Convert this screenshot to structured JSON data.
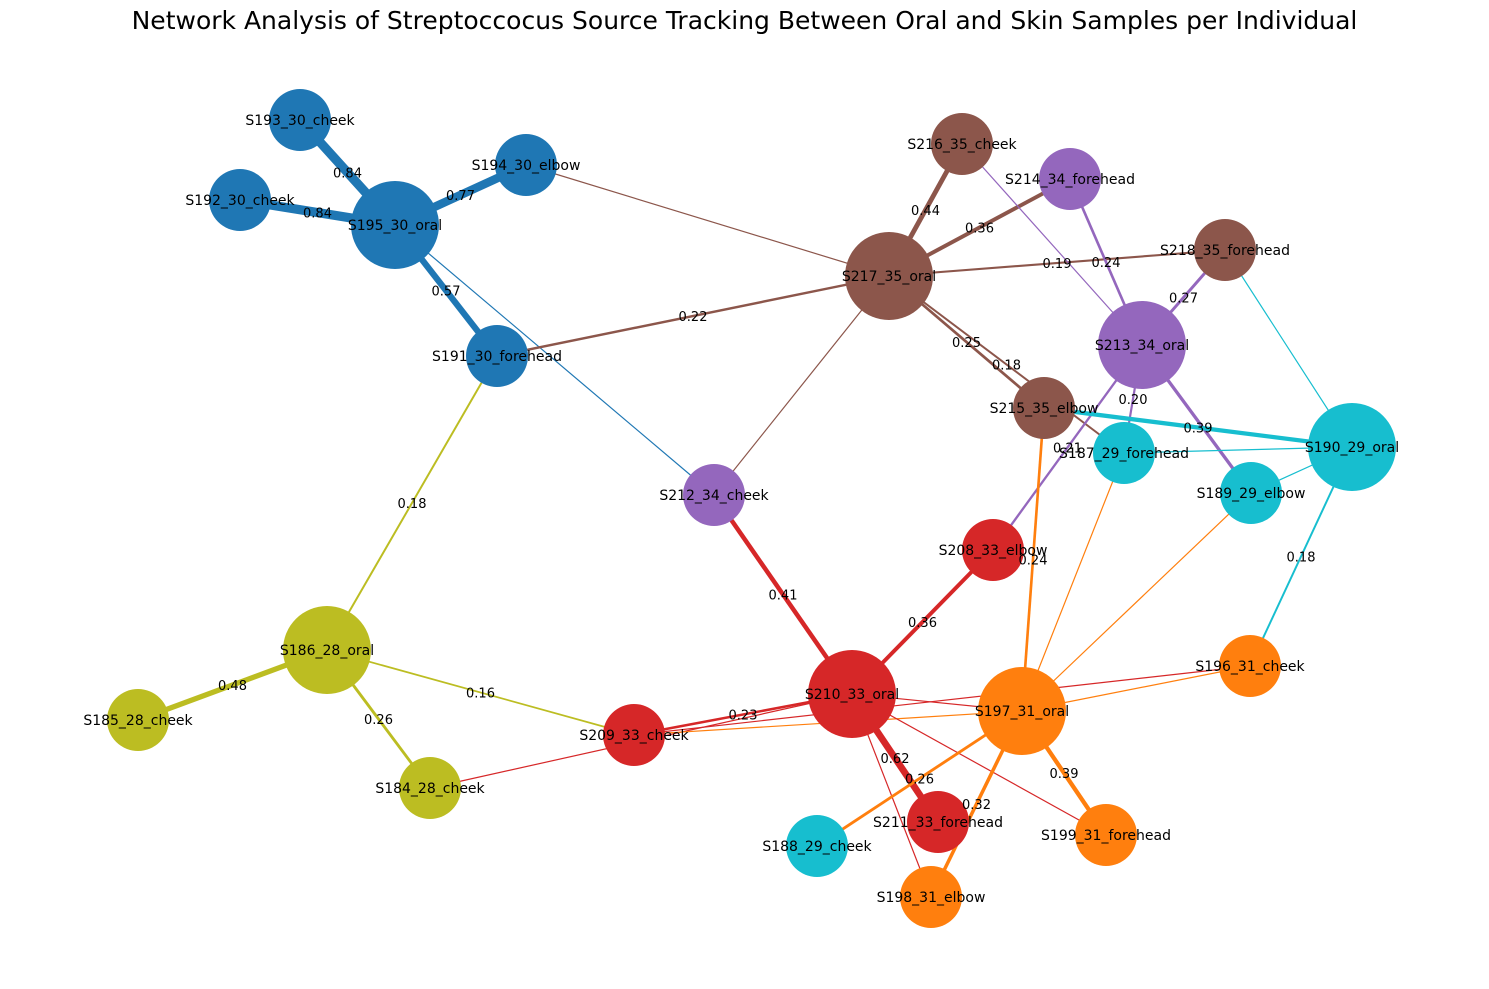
{
  "title": "Network Analysis of Streptoccocus Source Tracking Between Oral and Skin Samples per Individual",
  "colors": {
    "28": "#bcbd22",
    "29": "#17becf",
    "30": "#1f77b4",
    "31": "#ff7f0e",
    "33": "#d62728",
    "34": "#9467bd",
    "35": "#8c564b"
  },
  "nodes": [
    {
      "id": "S193_30_cheek",
      "group": "30",
      "type": "skin"
    },
    {
      "id": "S192_30_cheek",
      "group": "30",
      "type": "skin"
    },
    {
      "id": "S194_30_elbow",
      "group": "30",
      "type": "skin"
    },
    {
      "id": "S195_30_oral",
      "group": "30",
      "type": "oral"
    },
    {
      "id": "S191_30_forehead",
      "group": "30",
      "type": "skin"
    },
    {
      "id": "S216_35_cheek",
      "group": "35",
      "type": "skin"
    },
    {
      "id": "S214_34_forehead",
      "group": "34",
      "type": "skin"
    },
    {
      "id": "S217_35_oral",
      "group": "35",
      "type": "oral"
    },
    {
      "id": "S218_35_forehead",
      "group": "35",
      "type": "skin"
    },
    {
      "id": "S213_34_oral",
      "group": "34",
      "type": "oral"
    },
    {
      "id": "S215_35_elbow",
      "group": "35",
      "type": "skin"
    },
    {
      "id": "S187_29_forehead",
      "group": "29",
      "type": "skin"
    },
    {
      "id": "S190_29_oral",
      "group": "29",
      "type": "oral"
    },
    {
      "id": "S189_29_elbow",
      "group": "29",
      "type": "skin"
    },
    {
      "id": "S212_34_cheek",
      "group": "34",
      "type": "skin"
    },
    {
      "id": "S208_33_elbow",
      "group": "33",
      "type": "skin"
    },
    {
      "id": "S186_28_oral",
      "group": "28",
      "type": "oral"
    },
    {
      "id": "S185_28_cheek",
      "group": "28",
      "type": "skin"
    },
    {
      "id": "S184_28_cheek",
      "group": "28",
      "type": "skin"
    },
    {
      "id": "S209_33_cheek",
      "group": "33",
      "type": "skin"
    },
    {
      "id": "S210_33_oral",
      "group": "33",
      "type": "oral"
    },
    {
      "id": "S197_31_oral",
      "group": "31",
      "type": "oral"
    },
    {
      "id": "S196_31_cheek",
      "group": "31",
      "type": "skin"
    },
    {
      "id": "S211_33_forehead",
      "group": "33",
      "type": "skin"
    },
    {
      "id": "S199_31_forehead",
      "group": "31",
      "type": "skin"
    },
    {
      "id": "S188_29_cheek",
      "group": "29",
      "type": "skin"
    },
    {
      "id": "S198_31_elbow",
      "group": "31",
      "type": "skin"
    }
  ],
  "edges": [
    {
      "source": "S195_30_oral",
      "target": "S193_30_cheek",
      "weight": 0.84,
      "label": "0.84"
    },
    {
      "source": "S195_30_oral",
      "target": "S192_30_cheek",
      "weight": 0.84,
      "label": "0.84"
    },
    {
      "source": "S195_30_oral",
      "target": "S194_30_elbow",
      "weight": 0.77,
      "label": "0.77"
    },
    {
      "source": "S195_30_oral",
      "target": "S191_30_forehead",
      "weight": 0.57,
      "label": "0.57"
    },
    {
      "source": "S195_30_oral",
      "target": "S212_34_cheek",
      "weight": 0.06,
      "label": ""
    },
    {
      "source": "S194_30_elbow",
      "target": "S217_35_oral",
      "weight": 0.08,
      "label": ""
    },
    {
      "source": "S191_30_forehead",
      "target": "S217_35_oral",
      "weight": 0.22,
      "label": "0.22"
    },
    {
      "source": "S191_30_forehead",
      "target": "S186_28_oral",
      "weight": 0.18,
      "label": "0.18"
    },
    {
      "source": "S217_35_oral",
      "target": "S216_35_cheek",
      "weight": 0.44,
      "label": "0.44"
    },
    {
      "source": "S217_35_oral",
      "target": "S214_34_forehead",
      "weight": 0.36,
      "label": "0.36"
    },
    {
      "source": "S217_35_oral",
      "target": "S218_35_forehead",
      "weight": 0.19,
      "label": "0.19"
    },
    {
      "source": "S217_35_oral",
      "target": "S215_35_elbow",
      "weight": 0.25,
      "label": "0.25"
    },
    {
      "source": "S217_35_oral",
      "target": "S187_29_forehead",
      "weight": 0.18,
      "label": "0.18"
    },
    {
      "source": "S217_35_oral",
      "target": "S212_34_cheek",
      "weight": 0.06,
      "label": ""
    },
    {
      "source": "S216_35_cheek",
      "target": "S213_34_oral",
      "weight": 0.06,
      "label": ""
    },
    {
      "source": "S214_34_forehead",
      "target": "S213_34_oral",
      "weight": 0.24,
      "label": "0.24"
    },
    {
      "source": "S218_35_forehead",
      "target": "S213_34_oral",
      "weight": 0.27,
      "label": "0.27"
    },
    {
      "source": "S218_35_forehead",
      "target": "S190_29_oral",
      "weight": 0.08,
      "label": ""
    },
    {
      "source": "S213_34_oral",
      "target": "S189_29_elbow",
      "weight": 0.3,
      "label": ""
    },
    {
      "source": "S213_34_oral",
      "target": "S187_29_forehead",
      "weight": 0.2,
      "label": "0.20"
    },
    {
      "source": "S213_34_oral",
      "target": "S208_33_elbow",
      "weight": 0.21,
      "label": "0.21"
    },
    {
      "source": "S215_35_elbow",
      "target": "S190_29_oral",
      "weight": 0.39,
      "label": "0.39"
    },
    {
      "source": "S215_35_elbow",
      "target": "S197_31_oral",
      "weight": 0.24,
      "label": "0.24"
    },
    {
      "source": "S187_29_forehead",
      "target": "S190_29_oral",
      "weight": 0.08,
      "label": ""
    },
    {
      "source": "S187_29_forehead",
      "target": "S197_31_oral",
      "weight": 0.08,
      "label": ""
    },
    {
      "source": "S190_29_oral",
      "target": "S189_29_elbow",
      "weight": 0.06,
      "label": ""
    },
    {
      "source": "S190_29_oral",
      "target": "S196_31_cheek",
      "weight": 0.18,
      "label": "0.18"
    },
    {
      "source": "S189_29_elbow",
      "target": "S197_31_oral",
      "weight": 0.06,
      "label": ""
    },
    {
      "source": "S212_34_cheek",
      "target": "S210_33_oral",
      "weight": 0.41,
      "label": "0.41"
    },
    {
      "source": "S208_33_elbow",
      "target": "S210_33_oral",
      "weight": 0.36,
      "label": "0.36"
    },
    {
      "source": "S186_28_oral",
      "target": "S185_28_cheek",
      "weight": 0.48,
      "label": "0.48"
    },
    {
      "source": "S186_28_oral",
      "target": "S184_28_cheek",
      "weight": 0.26,
      "label": "0.26"
    },
    {
      "source": "S186_28_oral",
      "target": "S209_33_cheek",
      "weight": 0.16,
      "label": "0.16"
    },
    {
      "source": "S184_28_cheek",
      "target": "S210_33_oral",
      "weight": 0.06,
      "label": ""
    },
    {
      "source": "S209_33_cheek",
      "target": "S210_33_oral",
      "weight": 0.23,
      "label": "0.23"
    },
    {
      "source": "S209_33_cheek",
      "target": "S197_31_oral",
      "weight": 0.06,
      "label": ""
    },
    {
      "source": "S210_33_oral",
      "target": "S197_31_oral",
      "weight": 0.06,
      "label": ""
    },
    {
      "source": "S210_33_oral",
      "target": "S211_33_forehead",
      "weight": 0.62,
      "label": "0.62"
    },
    {
      "source": "S210_33_oral",
      "target": "S199_31_forehead",
      "weight": 0.06,
      "label": ""
    },
    {
      "source": "S210_33_oral",
      "target": "S198_31_elbow",
      "weight": 0.06,
      "label": ""
    },
    {
      "source": "S197_31_oral",
      "target": "S196_31_cheek",
      "weight": 0.06,
      "label": ""
    },
    {
      "source": "S197_31_oral",
      "target": "S188_29_cheek",
      "weight": 0.26,
      "label": "0.26"
    },
    {
      "source": "S197_31_oral",
      "target": "S198_31_elbow",
      "weight": 0.32,
      "label": "0.32"
    },
    {
      "source": "S197_31_oral",
      "target": "S199_31_forehead",
      "weight": 0.39,
      "label": "0.39"
    },
    {
      "source": "S209_33_cheek",
      "target": "S196_31_cheek",
      "weight": 0.06,
      "label": ""
    }
  ]
}
